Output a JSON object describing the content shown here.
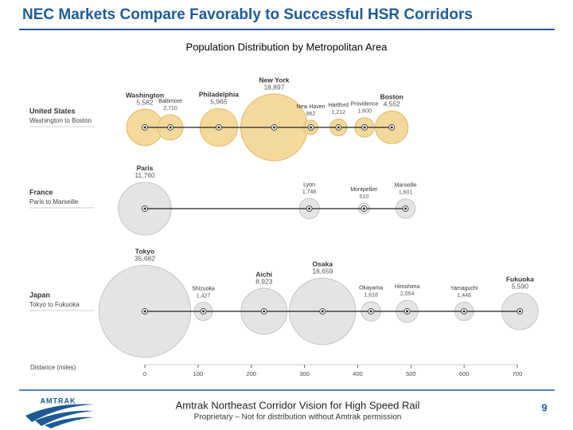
{
  "slide": {
    "title": "NEC Markets Compare Favorably to Successful HSR Corridors",
    "logo_text": "AMTRAK",
    "footer_title": "Amtrak Northeast Corridor Vision for High Speed Rail",
    "footer_note": "Proprietary – Not for distribution without Amtrak permission",
    "page_number": "9"
  },
  "chart_data": {
    "type": "bubble",
    "title": "Population Distribution by Metropolitan Area",
    "x_label": "Distance (miles)",
    "xlim": [
      0,
      700
    ],
    "xticks": [
      0,
      100,
      200,
      300,
      400,
      500,
      600,
      700
    ],
    "series": [
      {
        "name": "United States",
        "subtitle": "Washington to Boston",
        "color": "#f4d99c",
        "categories": [
          "Washington",
          "Baltimore",
          "Philadelphia",
          "New York",
          "New Haven",
          "Hartford",
          "Providence",
          "Boston"
        ],
        "x": [
          0,
          48,
          139,
          243,
          312,
          364,
          413,
          464
        ],
        "values": [
          5582,
          2710,
          5965,
          18897,
          862,
          1212,
          1600,
          4552
        ],
        "value_labels": [
          "5,582",
          "2,710",
          "5,965",
          "18,897",
          "862",
          "1,212",
          "1,600",
          "4,552"
        ]
      },
      {
        "name": "France",
        "subtitle": "Paris to Marseille",
        "color": "#e4e4e4",
        "categories": [
          "Paris",
          "Lyon",
          "Montpellier",
          "Marseille"
        ],
        "x": [
          0,
          309,
          412,
          490
        ],
        "values": [
          11760,
          1748,
          510,
          1601
        ],
        "value_labels": [
          "11,760",
          "1,748",
          "510",
          "1,601"
        ]
      },
      {
        "name": "Japan",
        "subtitle": "Tokyo to Fukuoka",
        "color": "#e4e4e4",
        "categories": [
          "Tokyo",
          "Shizuoka",
          "Aichi",
          "Osaka",
          "Okayama",
          "Hiroshima",
          "Yamaguchi",
          "Fukuoka"
        ],
        "x": [
          0,
          110,
          224,
          334,
          425,
          493,
          600,
          705
        ],
        "values": [
          35682,
          1427,
          8923,
          18659,
          1618,
          2054,
          1448,
          5590
        ],
        "value_labels": [
          "35,682",
          "1,427",
          "8,923",
          "18,659",
          "1,618",
          "2,054",
          "1,448",
          "5,590"
        ]
      }
    ]
  }
}
